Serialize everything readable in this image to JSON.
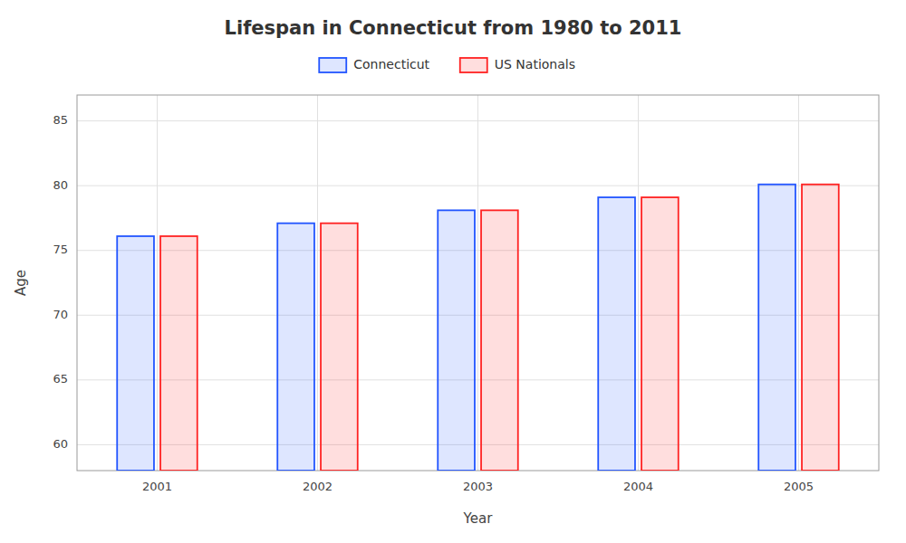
{
  "chart_data": {
    "type": "bar",
    "title": "Lifespan in Connecticut from 1980 to 2011",
    "x_label": "Year",
    "y_label": "Age",
    "categories": [
      "2001",
      "2002",
      "2003",
      "2004",
      "2005"
    ],
    "series": [
      {
        "name": "Connecticut",
        "color": "#2255ff",
        "values": [
          76.1,
          77.1,
          78.1,
          79.1,
          80.1
        ]
      },
      {
        "name": "US Nationals",
        "color": "#ff2222",
        "values": [
          76.1,
          77.1,
          78.1,
          79.1,
          80.1
        ]
      }
    ],
    "ylim": [
      58,
      87
    ],
    "yticks": [
      60,
      65,
      70,
      75,
      80,
      85
    ],
    "grid": true,
    "legend": "top"
  }
}
